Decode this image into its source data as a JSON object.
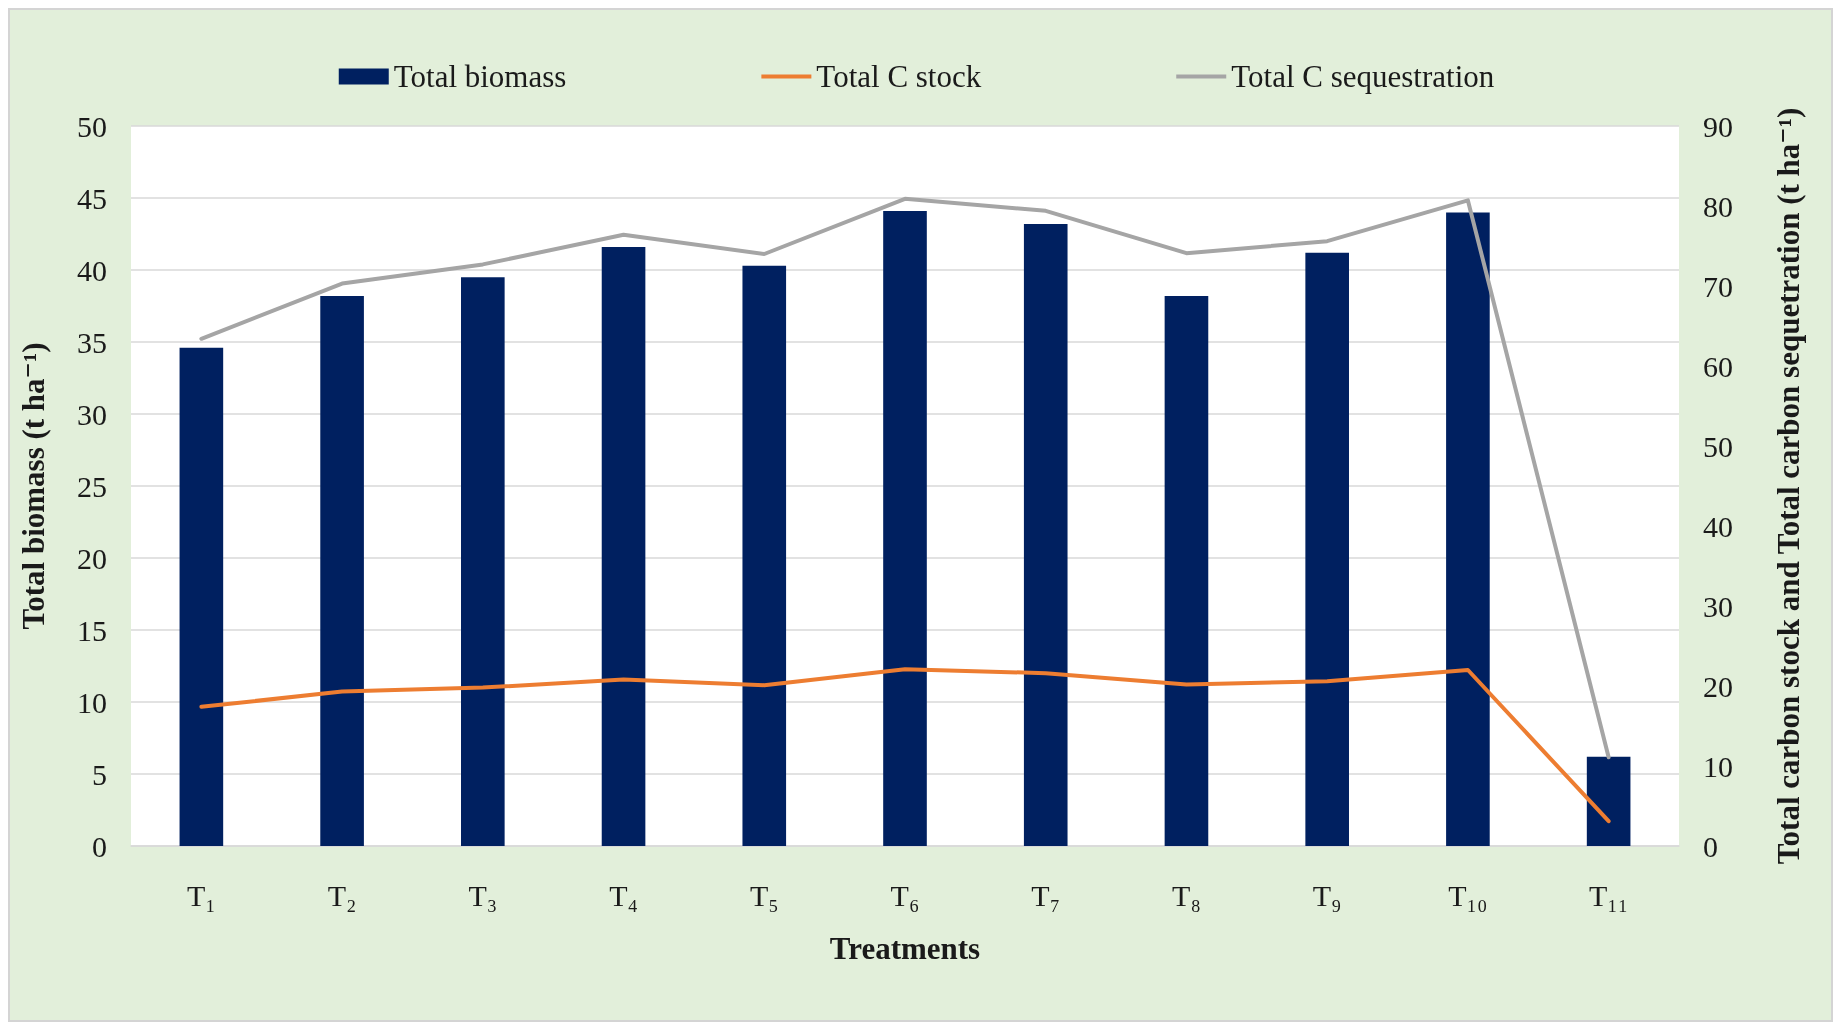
{
  "chart_data": {
    "type": "bar",
    "categories": [
      "T₁",
      "T₂",
      "T₃",
      "T₄",
      "T₅",
      "T₆",
      "T₇",
      "T₈",
      "T₉",
      "T₁₀",
      "T₁₁"
    ],
    "xlabel": "Treatments",
    "ylabel": "Total biomass (t ha⁻¹)",
    "y2label": "Total carbon stock and Total carbon sequetration (t ha⁻¹)",
    "ylim": [
      0,
      50
    ],
    "yticks": [
      0,
      5,
      10,
      15,
      20,
      25,
      30,
      35,
      40,
      45,
      50
    ],
    "y2lim": [
      0,
      90
    ],
    "y2ticks": [
      0,
      10,
      20,
      30,
      40,
      50,
      60,
      70,
      80,
      90
    ],
    "grid": "y",
    "legend": "top",
    "marker": "none",
    "series": [
      {
        "name": "Total biomass",
        "color": "#002060",
        "values": [
          34.6,
          38.2,
          39.5,
          41.6,
          40.3,
          44.1,
          43.2,
          38.2,
          41.2,
          44.0,
          6.2
        ]
      },
      {
        "name": "Total C stock",
        "type": "line",
        "axis": "y2",
        "color": "#ed7d31",
        "values": [
          17.4,
          19.3,
          19.8,
          20.8,
          20.1,
          22.1,
          21.6,
          20.2,
          20.6,
          22.0,
          3.1
        ]
      },
      {
        "name": "Total C sequestration",
        "type": "line",
        "axis": "y2",
        "color": "#a5a5a5",
        "values": [
          63.4,
          70.3,
          72.7,
          76.4,
          74.0,
          80.9,
          79.4,
          74.1,
          75.6,
          80.7,
          11.1
        ]
      }
    ]
  }
}
